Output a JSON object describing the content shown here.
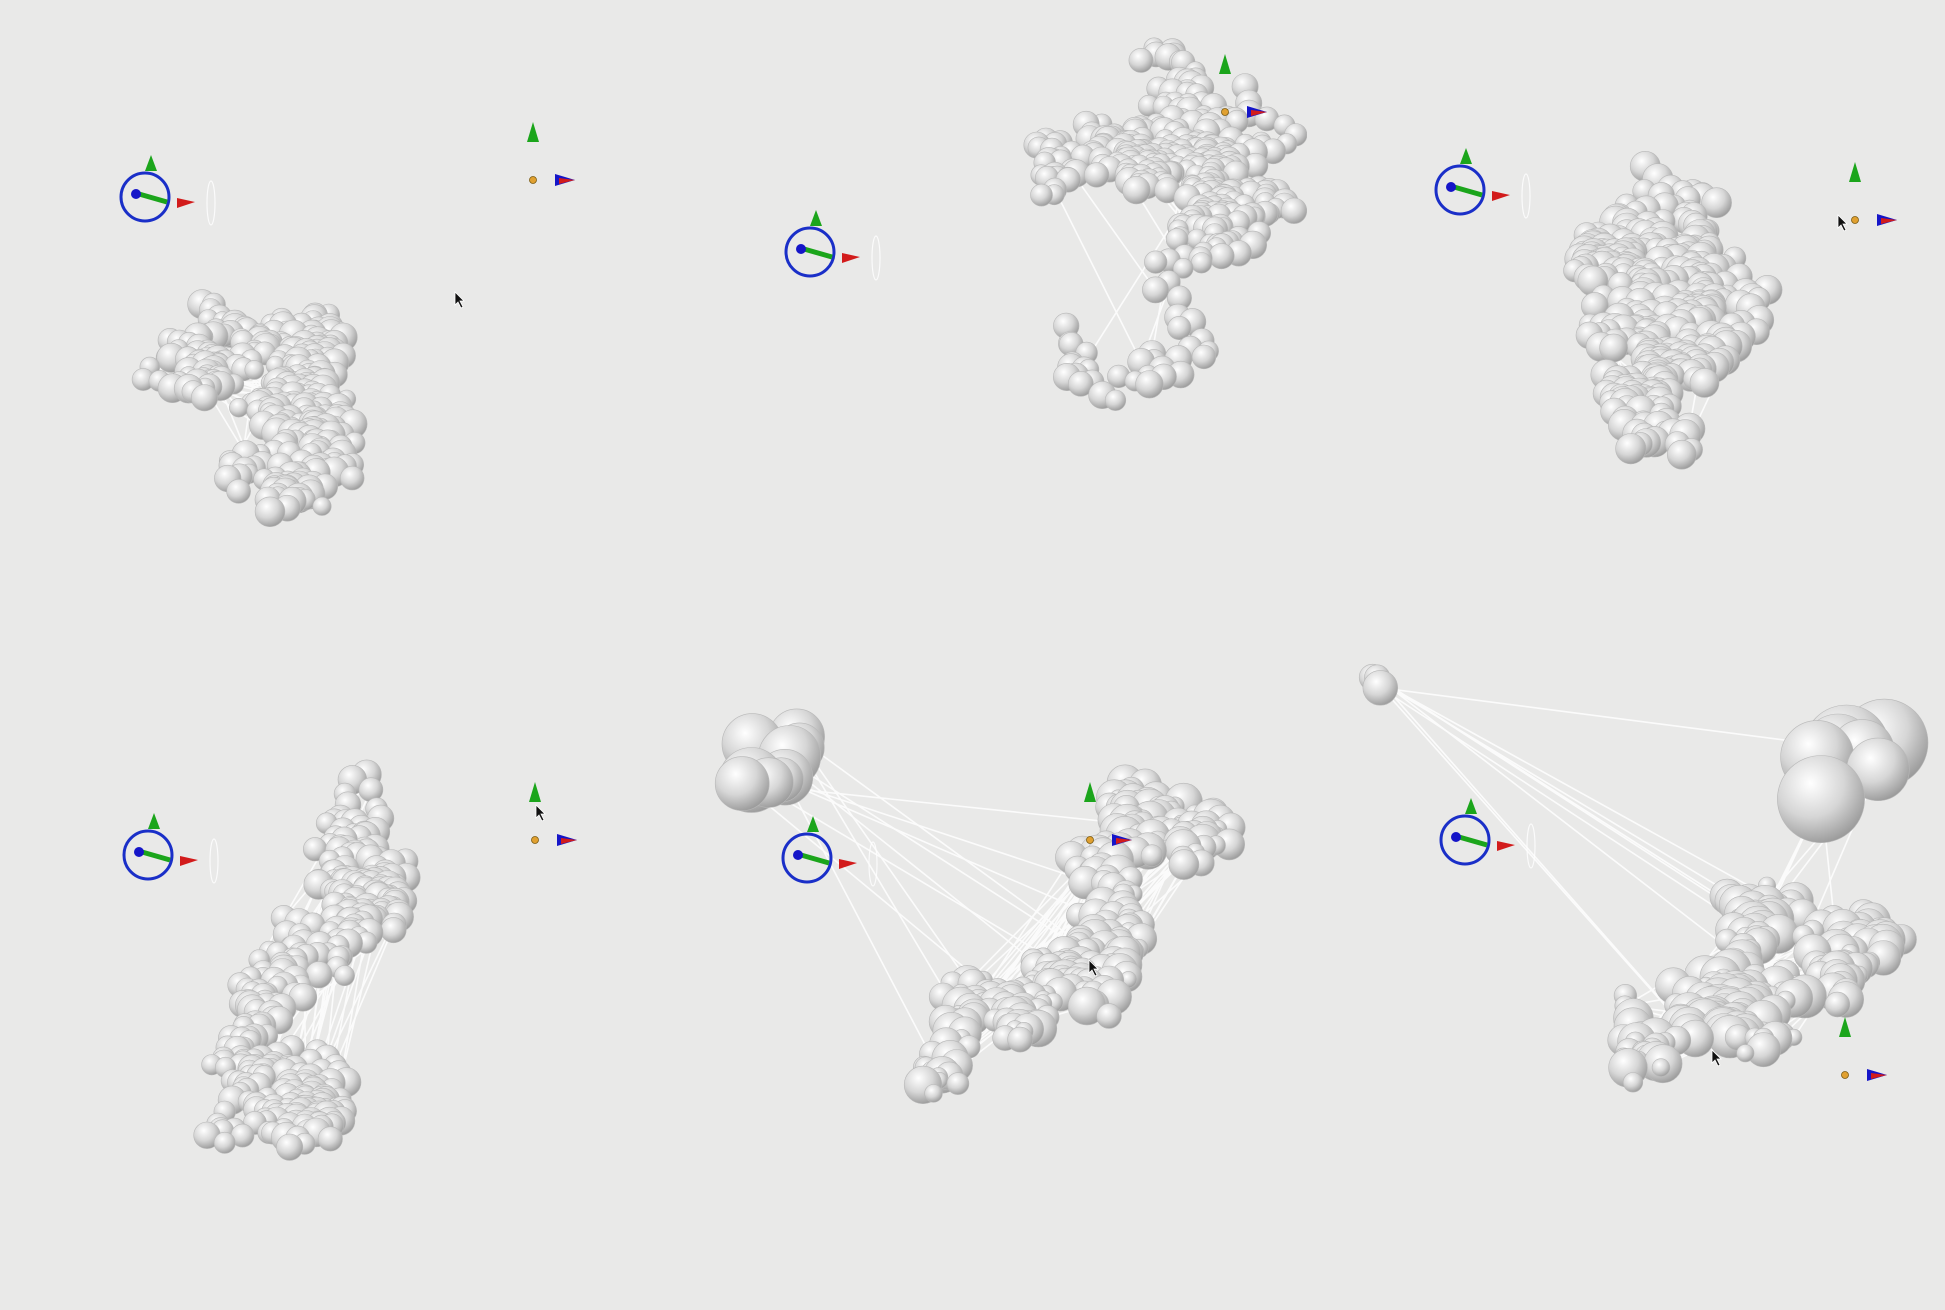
{
  "app": {
    "kind": "3D viewport grid",
    "background_color": "#e9e9e8",
    "sphere_color": "#d6d6d6",
    "link_color": "#ffffff"
  },
  "axis_colors": {
    "x": "#d21b1b",
    "y": "#1ba51b",
    "z": "#1515c8",
    "origin": "#e0a030",
    "ring": "#1a2fc8"
  },
  "viewports": [
    {
      "id": "vp-1",
      "view": "perspective",
      "zoom": "far"
    },
    {
      "id": "vp-2",
      "view": "perspective",
      "zoom": "far"
    },
    {
      "id": "vp-3",
      "view": "perspective",
      "zoom": "far"
    },
    {
      "id": "vp-4",
      "view": "perspective",
      "zoom": "far"
    },
    {
      "id": "vp-5",
      "view": "perspective",
      "zoom": "close"
    },
    {
      "id": "vp-6",
      "view": "perspective",
      "zoom": "close"
    }
  ],
  "icons": [
    "rotate-gizmo-icon",
    "axis-triad-icon",
    "mouse-cursor-icon"
  ]
}
